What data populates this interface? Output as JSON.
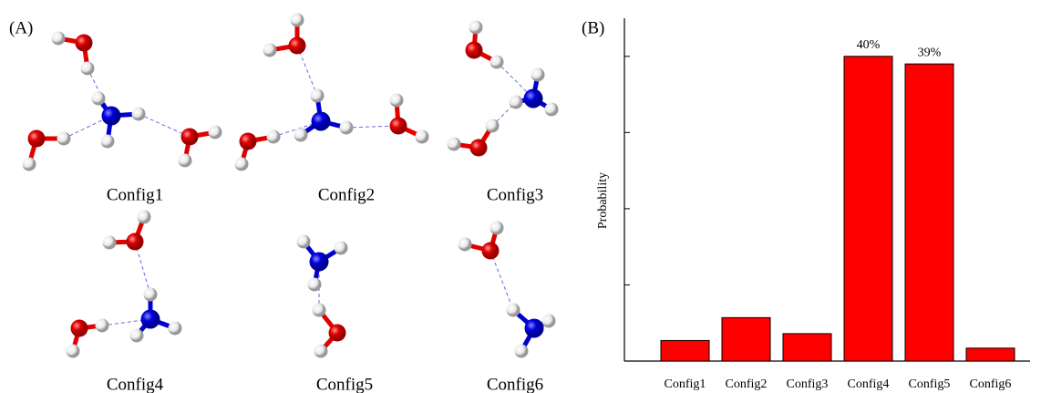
{
  "panel_a": {
    "label": "(A)",
    "structure_labels": [
      "Config1",
      "Config2",
      "Config3",
      "Config4",
      "Config5",
      "Config6"
    ]
  },
  "chart_data": {
    "type": "bar",
    "panel_label": "(B)",
    "y_label": "Probability",
    "categories": [
      "Config1",
      "Config2",
      "Config3",
      "Config4",
      "Config5",
      "Config6"
    ],
    "values": [
      2.7,
      5.7,
      3.6,
      40,
      39,
      1.7
    ],
    "value_labels": [
      null,
      null,
      null,
      "40%",
      "39%",
      null
    ],
    "color": "#ff0000",
    "ylim": [
      0,
      45
    ],
    "yticks": [
      10,
      20,
      30,
      40
    ]
  }
}
